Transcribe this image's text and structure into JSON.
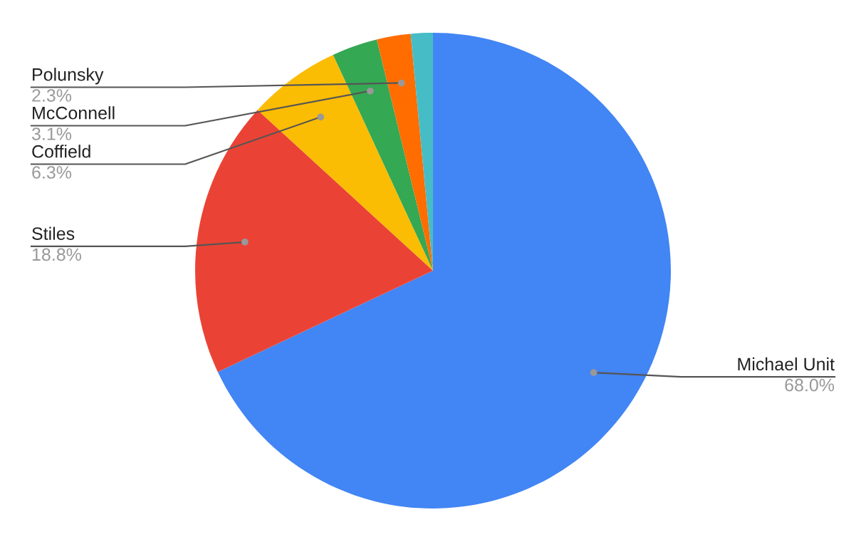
{
  "chart_data": {
    "type": "pie",
    "categories": [
      "Michael Unit",
      "Stiles",
      "Coffield",
      "McConnell",
      "Polunsky",
      null
    ],
    "values": [
      68.0,
      18.8,
      6.3,
      3.1,
      2.3,
      1.5
    ],
    "value_labels": [
      "68.0%",
      "18.8%",
      "6.3%",
      "3.1%",
      "2.3%",
      null
    ],
    "colors": [
      "#4285f4",
      "#ea4335",
      "#fbbc04",
      "#34a853",
      "#ff6d01",
      "#46bdc6"
    ],
    "legend": false
  }
}
